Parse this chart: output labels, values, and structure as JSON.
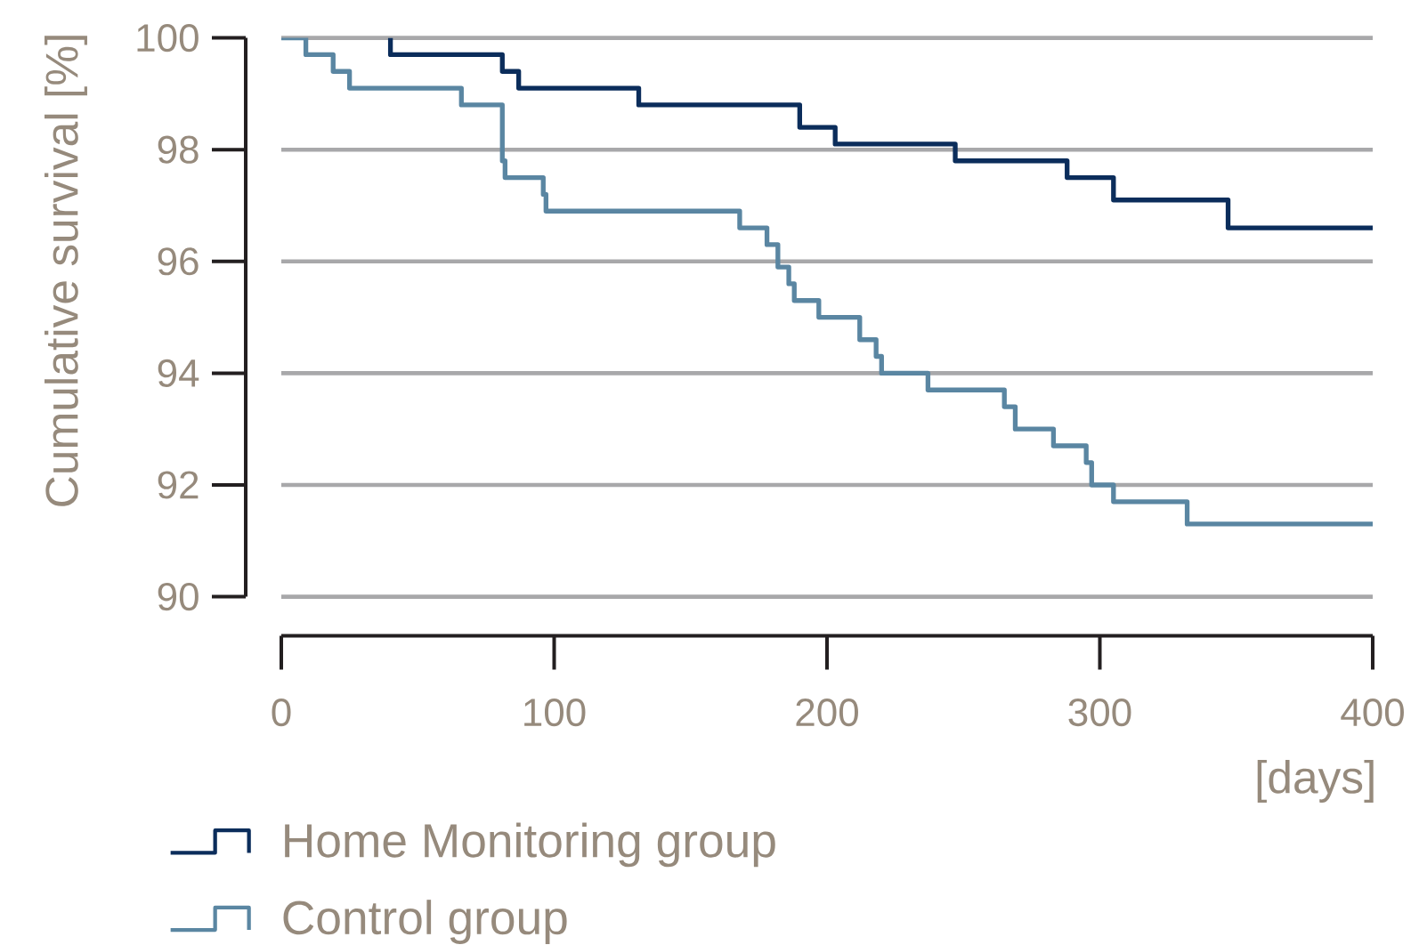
{
  "chart_data": {
    "type": "step",
    "xlabel": "[days]",
    "ylabel": "Cumulative survival [%]",
    "xlim": [
      0,
      400
    ],
    "ylim": [
      90,
      100
    ],
    "xticks": [
      0,
      100,
      200,
      300,
      400
    ],
    "yticks": [
      90,
      92,
      94,
      96,
      98,
      100
    ],
    "grid": "y",
    "legend": "bottom left",
    "series": [
      {
        "name": "Home Monitoring group",
        "color": "#0b2d5b",
        "x": [
          40,
          40,
          81,
          87,
          131,
          190,
          203,
          247,
          288,
          305,
          347,
          400
        ],
        "values": [
          100,
          99.7,
          99.4,
          99.1,
          98.8,
          98.4,
          98.1,
          97.8,
          97.5,
          97.1,
          96.6,
          96.6
        ]
      },
      {
        "name": "Control group",
        "color": "#5a86a2",
        "x": [
          0,
          9,
          19,
          25,
          66,
          81,
          82,
          96,
          97,
          168,
          178,
          182,
          186,
          188,
          197,
          212,
          218,
          220,
          237,
          265,
          269,
          283,
          295,
          297,
          305,
          332,
          400
        ],
        "values": [
          100,
          99.7,
          99.4,
          99.1,
          98.8,
          97.8,
          97.5,
          97.2,
          96.9,
          96.6,
          96.3,
          95.9,
          95.6,
          95.3,
          95.0,
          94.6,
          94.3,
          94.0,
          93.7,
          93.4,
          93.0,
          92.7,
          92.4,
          92.0,
          91.7,
          91.3,
          91.3
        ]
      }
    ]
  }
}
